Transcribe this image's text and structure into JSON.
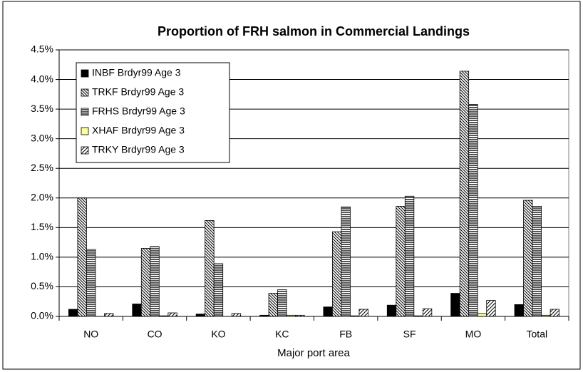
{
  "chart_data": {
    "type": "bar",
    "title": "Proportion of FRH salmon in Commercial Landings",
    "x_label": "Major port area",
    "categories": [
      "NO",
      "CO",
      "KO",
      "KC",
      "FB",
      "SF",
      "MO",
      "Total"
    ],
    "series": [
      {
        "name": "INBF  Brdyr99 Age 3",
        "color": "#000000",
        "pattern": "solid",
        "values": [
          0.12,
          0.21,
          0.04,
          0.02,
          0.16,
          0.19,
          0.39,
          0.2
        ]
      },
      {
        "name": "TRKF Brdyr99 Age 3",
        "color": "#000000",
        "pattern": "backslash",
        "values": [
          2.0,
          1.15,
          1.62,
          0.39,
          1.43,
          1.86,
          4.14,
          1.96
        ]
      },
      {
        "name": "FRHS Brdyr99 Age 3",
        "color": "#555555",
        "pattern": "hstripe",
        "values": [
          1.13,
          1.18,
          0.89,
          0.45,
          1.85,
          2.03,
          3.58,
          1.86
        ]
      },
      {
        "name": "XHAF Brdyr99 Age 3",
        "color": "#ffff99",
        "pattern": "solid",
        "values": [
          0,
          0.01,
          0,
          0.02,
          0.01,
          0.01,
          0.05,
          0.02
        ]
      },
      {
        "name": "TRKY Brdyr99 Age 3",
        "color": "#000000",
        "pattern": "slash",
        "values": [
          0.05,
          0.06,
          0.05,
          0.02,
          0.12,
          0.13,
          0.27,
          0.12
        ]
      }
    ],
    "ylim": [
      0,
      4.5
    ],
    "yticks": [
      {
        "value": 0,
        "label": "0.0%"
      },
      {
        "value": 0.5,
        "label": "0.5%"
      },
      {
        "value": 1,
        "label": "1.0%"
      },
      {
        "value": 1.5,
        "label": "1.5%"
      },
      {
        "value": 2,
        "label": "2.0%"
      },
      {
        "value": 2.5,
        "label": "2.5%"
      },
      {
        "value": 3,
        "label": "3.0%"
      },
      {
        "value": 3.5,
        "label": "3.5%"
      },
      {
        "value": 4,
        "label": "4.0%"
      },
      {
        "value": 4.5,
        "label": "4.5%"
      }
    ],
    "grid": true,
    "legend": "upper left"
  }
}
